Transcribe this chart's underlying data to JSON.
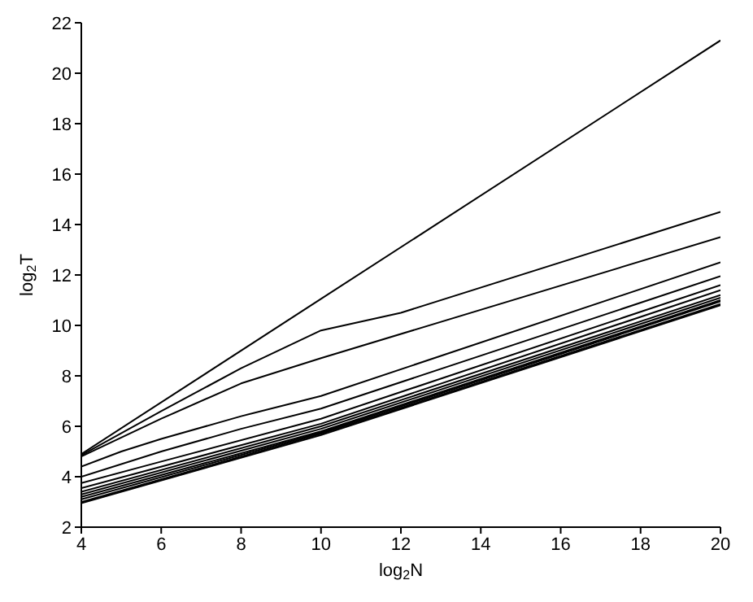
{
  "chart_data": {
    "type": "line",
    "xlabel": "log$_{2}$N",
    "ylabel": "log$_{2}$T",
    "xlim": [
      4,
      20
    ],
    "ylim": [
      2,
      22
    ],
    "xticks": [
      4,
      6,
      8,
      10,
      12,
      14,
      16,
      18,
      20
    ],
    "yticks": [
      2,
      4,
      6,
      8,
      10,
      12,
      14,
      16,
      18,
      20,
      22
    ],
    "marker": "none",
    "line_style": "solid",
    "series": [
      {
        "color": "#000000",
        "x": [
          4,
          10,
          20
        ],
        "values": [
          4.9,
          11.05,
          21.3
        ]
      },
      {
        "color": "#000000",
        "x": [
          4,
          6,
          8,
          10,
          12,
          20
        ],
        "values": [
          4.85,
          6.6,
          8.3,
          9.8,
          10.5,
          14.5
        ]
      },
      {
        "color": "#000000",
        "x": [
          4,
          6,
          8,
          10,
          20
        ],
        "values": [
          4.8,
          6.3,
          7.7,
          8.7,
          13.5
        ]
      },
      {
        "color": "#000000",
        "x": [
          4,
          5,
          6,
          8,
          10,
          20
        ],
        "values": [
          4.4,
          5.0,
          5.5,
          6.4,
          7.2,
          12.5
        ]
      },
      {
        "color": "#000000",
        "x": [
          4,
          6,
          8,
          10,
          20
        ],
        "values": [
          4.0,
          5.0,
          5.9,
          6.7,
          11.95
        ]
      },
      {
        "color": "#000000",
        "x": [
          4,
          6,
          10,
          20
        ],
        "values": [
          3.75,
          4.6,
          6.3,
          11.6
        ]
      },
      {
        "color": "#000000",
        "x": [
          4,
          10,
          20
        ],
        "values": [
          3.55,
          6.1,
          11.4
        ]
      },
      {
        "color": "#000000",
        "x": [
          4,
          10,
          20
        ],
        "values": [
          3.4,
          6.0,
          11.2
        ]
      },
      {
        "color": "#000000",
        "x": [
          4,
          10,
          20
        ],
        "values": [
          3.3,
          5.9,
          11.1
        ]
      },
      {
        "color": "#000000",
        "x": [
          4,
          10,
          20
        ],
        "values": [
          3.2,
          5.8,
          11.0
        ]
      },
      {
        "color": "#000000",
        "x": [
          4,
          10,
          20
        ],
        "values": [
          3.1,
          5.75,
          10.95
        ]
      },
      {
        "color": "#000000",
        "x": [
          4,
          10,
          20
        ],
        "values": [
          3.0,
          5.7,
          10.85
        ]
      },
      {
        "color": "#000000",
        "x": [
          4,
          10,
          20
        ],
        "values": [
          2.95,
          5.65,
          10.8
        ]
      }
    ]
  }
}
